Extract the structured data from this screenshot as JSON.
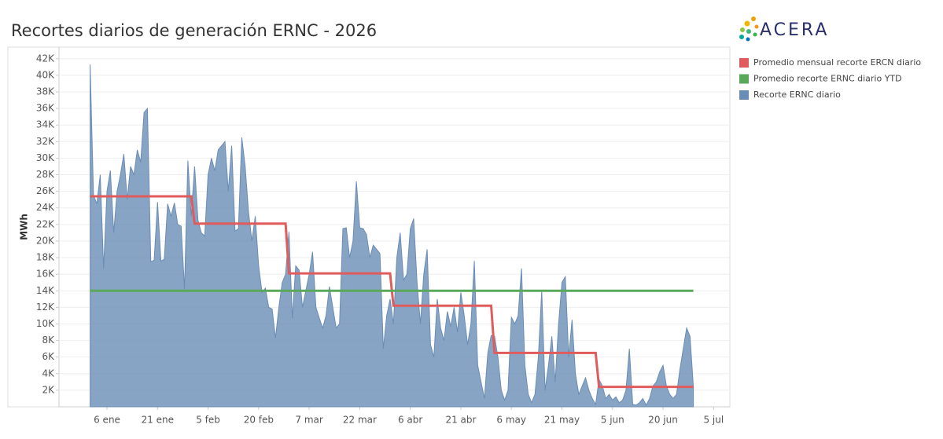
{
  "brand": "ACERA",
  "chart_data": {
    "type": "area",
    "title": "Recortes diarios de generación ERNC - 2026",
    "y_label": "MWh",
    "ylim": [
      0,
      43400
    ],
    "yticks": [
      {
        "value": 2000,
        "label": "2K"
      },
      {
        "value": 4000,
        "label": "4K"
      },
      {
        "value": 6000,
        "label": "6K"
      },
      {
        "value": 8000,
        "label": "8K"
      },
      {
        "value": 10000,
        "label": "10K"
      },
      {
        "value": 12000,
        "label": "12K"
      },
      {
        "value": 14000,
        "label": "14K"
      },
      {
        "value": 16000,
        "label": "16K"
      },
      {
        "value": 18000,
        "label": "18K"
      },
      {
        "value": 20000,
        "label": "20K"
      },
      {
        "value": 22000,
        "label": "22K"
      },
      {
        "value": 24000,
        "label": "24K"
      },
      {
        "value": 26000,
        "label": "26K"
      },
      {
        "value": 28000,
        "label": "28K"
      },
      {
        "value": 30000,
        "label": "30K"
      },
      {
        "value": 32000,
        "label": "32K"
      },
      {
        "value": 34000,
        "label": "34K"
      },
      {
        "value": 36000,
        "label": "36K"
      },
      {
        "value": 38000,
        "label": "38K"
      },
      {
        "value": 40000,
        "label": "40K"
      },
      {
        "value": 42000,
        "label": "42K"
      }
    ],
    "xticks": [
      {
        "value": "01-06",
        "label": "6 ene"
      },
      {
        "value": "01-21",
        "label": "21 ene"
      },
      {
        "value": "02-05",
        "label": "5 feb"
      },
      {
        "value": "02-20",
        "label": "20 feb"
      },
      {
        "value": "03-07",
        "label": "7 mar"
      },
      {
        "value": "03-22",
        "label": "22 mar"
      },
      {
        "value": "04-06",
        "label": "6 abr"
      },
      {
        "value": "04-21",
        "label": "21 abr"
      },
      {
        "value": "05-06",
        "label": "6 may"
      },
      {
        "value": "05-21",
        "label": "21 may"
      },
      {
        "value": "06-05",
        "label": "5 jun"
      },
      {
        "value": "06-20",
        "label": "20 jun"
      },
      {
        "value": "07-05",
        "label": "5 jul"
      }
    ],
    "grid": true,
    "legend": "right",
    "series": [
      {
        "name": "Promedio mensual recorte ERCN diario",
        "color": "#e05c5c",
        "type": "line",
        "x": [
          "01-01",
          "01-31",
          "02-01",
          "02-28",
          "03-01",
          "03-31",
          "04-01",
          "04-30",
          "05-01",
          "05-31",
          "06-01",
          "06-29"
        ],
        "values": [
          25400,
          25400,
          22100,
          22100,
          16100,
          16100,
          12200,
          12200,
          6500,
          6500,
          2400,
          2400
        ]
      },
      {
        "name": "Promedio recorte ERNC diario YTD",
        "color": "#5aa85a",
        "type": "line",
        "x": [
          "01-01",
          "06-29"
        ],
        "values": [
          14000,
          14000
        ]
      },
      {
        "name": "Recorte ERNC diario",
        "color": "#6a8db5",
        "type": "area",
        "x": [
          "01-01",
          "01-02",
          "01-03",
          "01-04",
          "01-05",
          "01-06",
          "01-07",
          "01-08",
          "01-09",
          "01-10",
          "01-11",
          "01-12",
          "01-13",
          "01-14",
          "01-15",
          "01-16",
          "01-17",
          "01-18",
          "01-19",
          "01-20",
          "01-21",
          "01-22",
          "01-23",
          "01-24",
          "01-25",
          "01-26",
          "01-27",
          "01-28",
          "01-29",
          "01-30",
          "01-31",
          "02-01",
          "02-02",
          "02-03",
          "02-04",
          "02-05",
          "02-06",
          "02-07",
          "02-08",
          "02-09",
          "02-10",
          "02-11",
          "02-12",
          "02-13",
          "02-14",
          "02-15",
          "02-16",
          "02-17",
          "02-18",
          "02-19",
          "02-20",
          "02-21",
          "02-22",
          "02-23",
          "02-24",
          "02-25",
          "02-26",
          "02-27",
          "02-28",
          "03-01",
          "03-02",
          "03-03",
          "03-04",
          "03-05",
          "03-06",
          "03-07",
          "03-08",
          "03-09",
          "03-10",
          "03-11",
          "03-12",
          "03-13",
          "03-14",
          "03-15",
          "03-16",
          "03-17",
          "03-18",
          "03-19",
          "03-20",
          "03-21",
          "03-22",
          "03-23",
          "03-24",
          "03-25",
          "03-26",
          "03-27",
          "03-28",
          "03-29",
          "03-30",
          "03-31",
          "04-01",
          "04-02",
          "04-03",
          "04-04",
          "04-05",
          "04-06",
          "04-07",
          "04-08",
          "04-09",
          "04-10",
          "04-11",
          "04-12",
          "04-13",
          "04-14",
          "04-15",
          "04-16",
          "04-17",
          "04-18",
          "04-19",
          "04-20",
          "04-21",
          "04-22",
          "04-23",
          "04-24",
          "04-25",
          "04-26",
          "04-27",
          "04-28",
          "04-29",
          "04-30",
          "05-01",
          "05-02",
          "05-03",
          "05-04",
          "05-05",
          "05-06",
          "05-07",
          "05-08",
          "05-09",
          "05-10",
          "05-11",
          "05-12",
          "05-13",
          "05-14",
          "05-15",
          "05-16",
          "05-17",
          "05-18",
          "05-19",
          "05-20",
          "05-21",
          "05-22",
          "05-23",
          "05-24",
          "05-25",
          "05-26",
          "05-27",
          "05-28",
          "05-29",
          "05-30",
          "05-31",
          "06-01",
          "06-02",
          "06-03",
          "06-04",
          "06-05",
          "06-06",
          "06-07",
          "06-08",
          "06-09",
          "06-10",
          "06-11",
          "06-12",
          "06-13",
          "06-14",
          "06-15",
          "06-16",
          "06-17",
          "06-18",
          "06-19",
          "06-20",
          "06-21",
          "06-22",
          "06-23",
          "06-24",
          "06-25",
          "06-26",
          "06-27",
          "06-28",
          "06-29"
        ],
        "values": [
          41300,
          25500,
          24500,
          28000,
          16700,
          26000,
          28500,
          21000,
          26000,
          28000,
          30500,
          25000,
          29000,
          28000,
          31000,
          29500,
          35500,
          36000,
          17500,
          17700,
          24700,
          17600,
          17800,
          24500,
          23000,
          24600,
          22000,
          21800,
          14200,
          29700,
          23000,
          29000,
          22500,
          21000,
          20600,
          28000,
          30000,
          28500,
          31000,
          31500,
          32000,
          26000,
          31500,
          21200,
          21500,
          32500,
          29000,
          23500,
          20000,
          23000,
          17000,
          13800,
          14300,
          12000,
          11800,
          8300,
          12000,
          15000,
          16000,
          21100,
          10700,
          17000,
          16500,
          12000,
          14000,
          16000,
          18700,
          12000,
          10700,
          9500,
          11000,
          14500,
          12000,
          9500,
          10000,
          21500,
          21600,
          18000,
          20000,
          27200,
          21600,
          21500,
          20800,
          18000,
          19500,
          19000,
          18500,
          7000,
          11000,
          13000,
          10000,
          18000,
          21000,
          15300,
          16000,
          21500,
          22700,
          15000,
          10000,
          16000,
          19000,
          7500,
          6000,
          13000,
          9500,
          8000,
          11500,
          9700,
          12000,
          9000,
          13800,
          11000,
          7500,
          10000,
          17600,
          5000,
          3000,
          1000,
          6500,
          8600,
          8500,
          6000,
          2000,
          800,
          2000,
          10800,
          10000,
          11000,
          16700,
          5000,
          1500,
          500,
          1500,
          6000,
          14000,
          2000,
          5000,
          8500,
          3000,
          10000,
          15000,
          15700,
          6000,
          10500,
          4000,
          1500,
          2500,
          3500,
          2000,
          1000,
          300,
          3300,
          2500,
          1000,
          1500,
          800,
          1200,
          500,
          800,
          2000,
          7000,
          300,
          200,
          500,
          1000,
          200,
          1000,
          2500,
          3000,
          4200,
          5000,
          2500,
          1500,
          1000,
          1500,
          4500,
          7000,
          9500,
          8500,
          2400
        ]
      }
    ]
  }
}
